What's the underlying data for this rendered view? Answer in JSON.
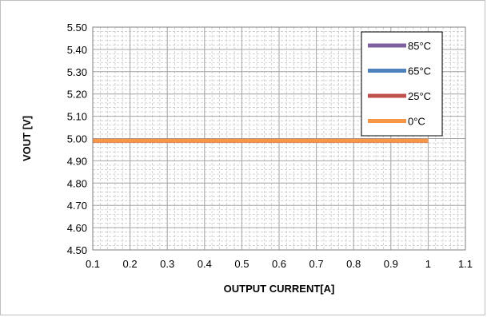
{
  "chart_data": {
    "type": "line",
    "xlabel": "OUTPUT CURRENT[A]",
    "ylabel": "VOUT [V]",
    "xlim": [
      0.1,
      1.1
    ],
    "ylim": [
      4.5,
      5.5
    ],
    "x_ticks": [
      "0.1",
      "0.2",
      "0.3",
      "0.4",
      "0.5",
      "0.6",
      "0.7",
      "0.8",
      "0.9",
      "1",
      "1.1"
    ],
    "y_ticks": [
      "5.50",
      "5.40",
      "5.30",
      "5.20",
      "5.10",
      "5.00",
      "4.90",
      "4.80",
      "4.70",
      "4.60",
      "4.50"
    ],
    "grid": true,
    "legend_position": "top-right",
    "series": [
      {
        "name": "85°C",
        "color": "#7F60A0",
        "x": [
          0.1,
          0.2,
          0.3,
          0.4,
          0.5,
          0.6,
          0.7,
          0.8,
          0.9,
          1.0
        ],
        "y": [
          4.99,
          4.99,
          4.99,
          4.99,
          4.99,
          4.99,
          4.99,
          4.99,
          4.99,
          4.99
        ]
      },
      {
        "name": "65°C",
        "color": "#4F81BD",
        "x": [
          0.1,
          0.2,
          0.3,
          0.4,
          0.5,
          0.6,
          0.7,
          0.8,
          0.9,
          1.0
        ],
        "y": [
          4.99,
          4.99,
          4.99,
          4.99,
          4.99,
          4.99,
          4.99,
          4.99,
          4.99,
          4.99
        ]
      },
      {
        "name": "25°C",
        "color": "#C0504D",
        "x": [
          0.1,
          0.2,
          0.3,
          0.4,
          0.5,
          0.6,
          0.7,
          0.8,
          0.9,
          1.0
        ],
        "y": [
          4.99,
          4.99,
          4.99,
          4.99,
          4.99,
          4.99,
          4.99,
          4.99,
          4.99,
          4.99
        ]
      },
      {
        "name": "0°C",
        "color": "#F79646",
        "x": [
          0.1,
          0.2,
          0.3,
          0.4,
          0.5,
          0.6,
          0.7,
          0.8,
          0.9,
          1.0
        ],
        "y": [
          4.99,
          4.99,
          4.99,
          4.99,
          4.99,
          4.99,
          4.99,
          4.99,
          4.99,
          4.99
        ]
      }
    ]
  }
}
